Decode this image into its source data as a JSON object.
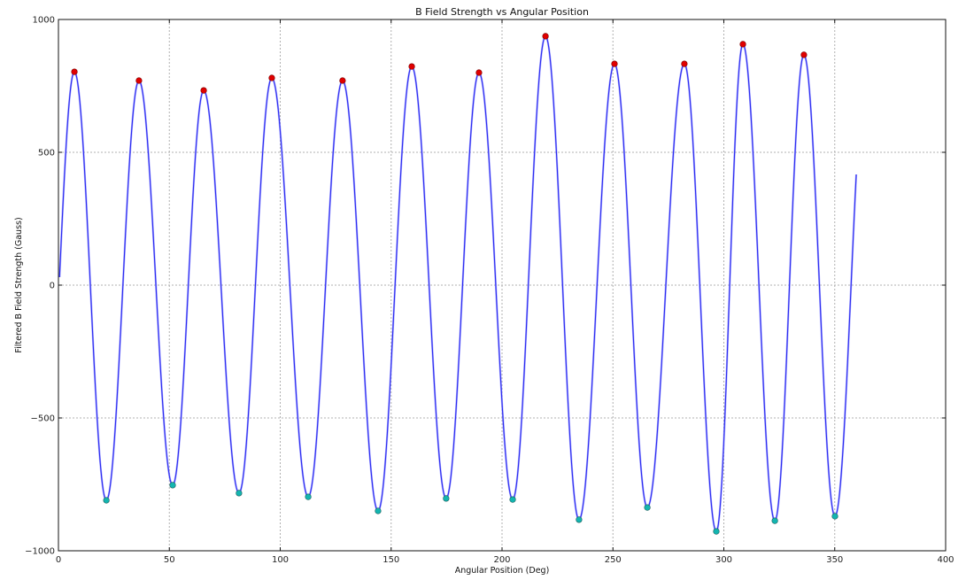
{
  "chart_data": {
    "type": "line",
    "title": "B Field Strength vs Angular Position",
    "xlabel": "Angular Position (Deg)",
    "ylabel": "Filtered B Field Strength (Gauss)",
    "xlim": [
      0,
      400
    ],
    "ylim": [
      -1000,
      1000
    ],
    "xticks": [
      0,
      50,
      100,
      150,
      200,
      250,
      300,
      350,
      400
    ],
    "yticks": [
      -1000,
      -500,
      0,
      500,
      1000
    ],
    "ytick_labels": [
      "−1000",
      "−500",
      "0",
      "500",
      "1000"
    ],
    "grid": true,
    "legend": null,
    "colors": {
      "line": "#2a2af0",
      "peak": "#e00000",
      "valley": "#13b5b0",
      "grid": "#b0b0b0"
    },
    "curve_start": {
      "x": 0.5,
      "y": 30
    },
    "curve_end": {
      "x": 359.7,
      "y": 577
    },
    "series": [
      {
        "name": "Filtered B Field",
        "style": "line",
        "note": "smooth oscillation passing through the extrema below"
      },
      {
        "name": "Peaks",
        "style": "marker",
        "points": [
          {
            "x": 7.2,
            "y": 803
          },
          {
            "x": 36.3,
            "y": 770
          },
          {
            "x": 65.5,
            "y": 733
          },
          {
            "x": 96.2,
            "y": 780
          },
          {
            "x": 128.1,
            "y": 770
          },
          {
            "x": 159.3,
            "y": 823
          },
          {
            "x": 189.6,
            "y": 800
          },
          {
            "x": 219.6,
            "y": 937
          },
          {
            "x": 250.7,
            "y": 833
          },
          {
            "x": 282.2,
            "y": 833
          },
          {
            "x": 308.6,
            "y": 907
          },
          {
            "x": 336.1,
            "y": 867
          }
        ]
      },
      {
        "name": "Valleys",
        "style": "marker",
        "points": [
          {
            "x": 21.6,
            "y": -810
          },
          {
            "x": 51.5,
            "y": -753
          },
          {
            "x": 81.4,
            "y": -783
          },
          {
            "x": 112.6,
            "y": -797
          },
          {
            "x": 144.1,
            "y": -850
          },
          {
            "x": 174.8,
            "y": -803
          },
          {
            "x": 204.8,
            "y": -807
          },
          {
            "x": 234.7,
            "y": -883
          },
          {
            "x": 265.5,
            "y": -837
          },
          {
            "x": 296.6,
            "y": -927
          },
          {
            "x": 323.0,
            "y": -887
          },
          {
            "x": 350.1,
            "y": -870
          }
        ]
      }
    ]
  }
}
